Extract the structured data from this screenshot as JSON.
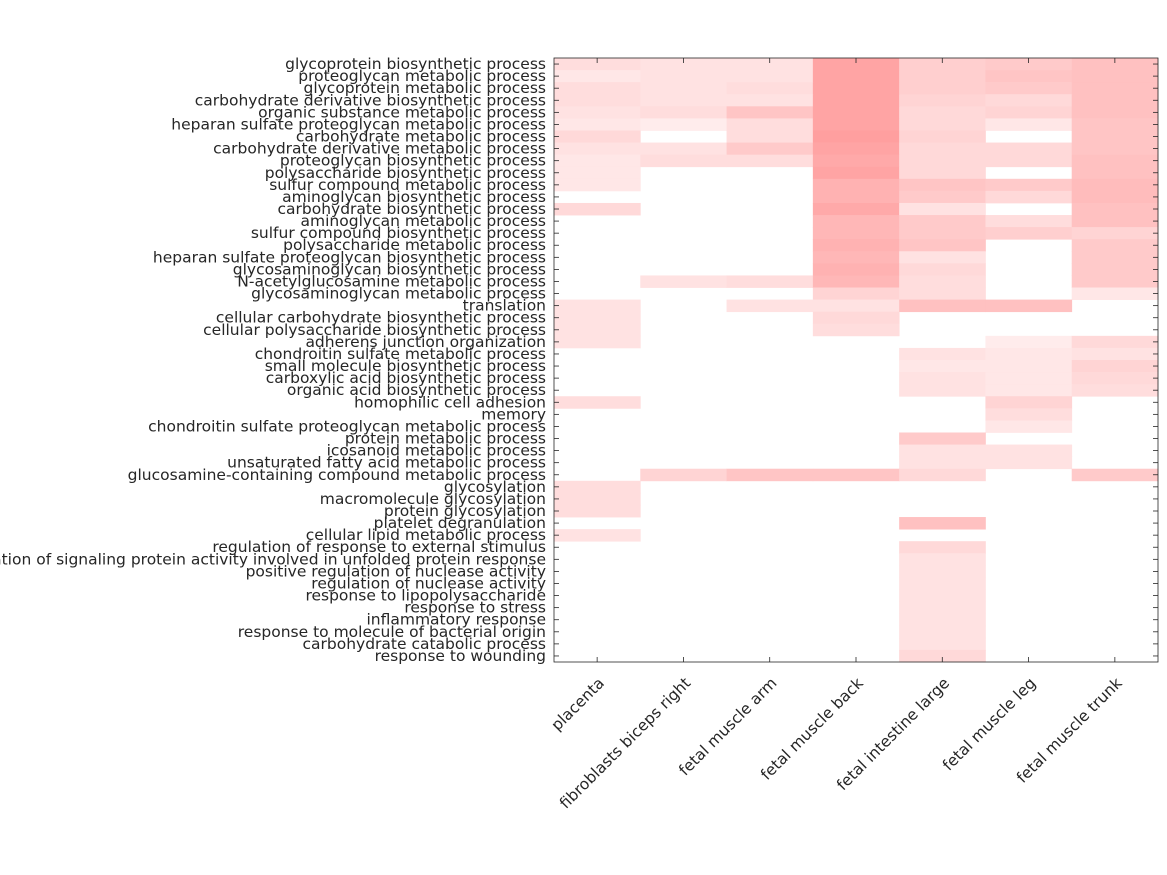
{
  "chart_data": {
    "type": "heatmap",
    "title": "",
    "xlabel": "",
    "ylabel": "",
    "colors": {
      "high": "#ff9f9f",
      "low": "#ffffff",
      "axis": "#262626"
    },
    "columns": [
      "placenta",
      "fibroblasts biceps right",
      "fetal muscle arm",
      "fetal muscle back",
      "fetal intestine large",
      "fetal muscle leg",
      "fetal muscle trunk"
    ],
    "rows": [
      "glycoprotein biosynthetic process",
      "proteoglycan metabolic process",
      "glycoprotein metabolic process",
      "carbohydrate derivative biosynthetic process",
      "organic substance metabolic process",
      "heparan sulfate proteoglycan metabolic process",
      "carbohydrate metabolic process",
      "carbohydrate derivative metabolic process",
      "proteoglycan biosynthetic process",
      "polysaccharide biosynthetic process",
      "sulfur compound metabolic process",
      "aminoglycan biosynthetic process",
      "carbohydrate biosynthetic process",
      "aminoglycan metabolic process",
      "sulfur compound biosynthetic process",
      "polysaccharide metabolic process",
      "heparan sulfate proteoglycan biosynthetic process",
      "glycosaminoglycan biosynthetic process",
      "N-acetylglucosamine metabolic process",
      "glycosaminoglycan metabolic process",
      "translation",
      "cellular carbohydrate biosynthetic process",
      "cellular polysaccharide biosynthetic process",
      "adherens junction organization",
      "chondroitin sulfate metabolic process",
      "small molecule biosynthetic process",
      "carboxylic acid biosynthetic process",
      "organic acid biosynthetic process",
      "homophilic cell adhesion",
      "memory",
      "chondroitin sulfate proteoglycan metabolic process",
      "protein metabolic process",
      "icosanoid metabolic process",
      "unsaturated fatty acid metabolic process",
      "glucosamine-containing compound metabolic process",
      "glycosylation",
      "macromolecule glycosylation",
      "protein glycosylation",
      "platelet degranulation",
      "cellular lipid metabolic process",
      "regulation of response to external stimulus",
      "regulation of signaling protein activity involved in unfolded protein response",
      "positive regulation of nuclease activity",
      "regulation of nuclease activity",
      "response to lipopolysaccharide",
      "response to stress",
      "inflammatory response",
      "response to molecule of bacterial origin",
      "carbohydrate catabolic process",
      "response to wounding"
    ],
    "values": [
      [
        0.35,
        0.3,
        0.3,
        0.95,
        0.5,
        0.55,
        0.65
      ],
      [
        0.25,
        0.3,
        0.3,
        0.95,
        0.5,
        0.6,
        0.65
      ],
      [
        0.35,
        0.3,
        0.35,
        0.95,
        0.5,
        0.55,
        0.65
      ],
      [
        0.35,
        0.3,
        0.3,
        0.95,
        0.45,
        0.4,
        0.65
      ],
      [
        0.3,
        0.35,
        0.6,
        0.95,
        0.4,
        0.45,
        0.65
      ],
      [
        0.25,
        0.2,
        0.35,
        0.95,
        0.4,
        0.25,
        0.6
      ],
      [
        0.4,
        0.0,
        0.35,
        1.0,
        0.45,
        0.0,
        0.6
      ],
      [
        0.3,
        0.3,
        0.55,
        0.95,
        0.4,
        0.4,
        0.6
      ],
      [
        0.25,
        0.35,
        0.35,
        0.9,
        0.4,
        0.4,
        0.65
      ],
      [
        0.25,
        0.0,
        0.0,
        0.95,
        0.4,
        0.0,
        0.65
      ],
      [
        0.25,
        0.0,
        0.0,
        0.8,
        0.6,
        0.55,
        0.7
      ],
      [
        0.0,
        0.0,
        0.0,
        0.8,
        0.55,
        0.4,
        0.7
      ],
      [
        0.4,
        0.0,
        0.0,
        0.9,
        0.3,
        0.0,
        0.65
      ],
      [
        0.0,
        0.0,
        0.0,
        0.75,
        0.55,
        0.35,
        0.65
      ],
      [
        0.0,
        0.0,
        0.0,
        0.75,
        0.55,
        0.5,
        0.45
      ],
      [
        0.0,
        0.0,
        0.0,
        0.8,
        0.6,
        0.0,
        0.55
      ],
      [
        0.0,
        0.0,
        0.0,
        0.75,
        0.3,
        0.0,
        0.55
      ],
      [
        0.0,
        0.0,
        0.0,
        0.8,
        0.4,
        0.0,
        0.55
      ],
      [
        0.0,
        0.3,
        0.35,
        0.75,
        0.35,
        0.0,
        0.55
      ],
      [
        0.0,
        0.0,
        0.0,
        0.45,
        0.35,
        0.0,
        0.25
      ],
      [
        0.3,
        0.0,
        0.3,
        0.3,
        0.65,
        0.65,
        0.0
      ],
      [
        0.3,
        0.0,
        0.0,
        0.4,
        0.0,
        0.0,
        0.0
      ],
      [
        0.3,
        0.0,
        0.0,
        0.35,
        0.0,
        0.0,
        0.0
      ],
      [
        0.3,
        0.0,
        0.0,
        0.0,
        0.0,
        0.2,
        0.4
      ],
      [
        0.0,
        0.0,
        0.0,
        0.0,
        0.3,
        0.25,
        0.3
      ],
      [
        0.0,
        0.0,
        0.0,
        0.0,
        0.25,
        0.25,
        0.45
      ],
      [
        0.0,
        0.0,
        0.0,
        0.0,
        0.3,
        0.25,
        0.4
      ],
      [
        0.0,
        0.0,
        0.0,
        0.0,
        0.3,
        0.25,
        0.35
      ],
      [
        0.35,
        0.0,
        0.0,
        0.0,
        0.0,
        0.45,
        0.0
      ],
      [
        0.0,
        0.0,
        0.0,
        0.0,
        0.0,
        0.35,
        0.0
      ],
      [
        0.0,
        0.0,
        0.0,
        0.0,
        0.0,
        0.25,
        0.0
      ],
      [
        0.0,
        0.0,
        0.0,
        0.0,
        0.55,
        0.0,
        0.0
      ],
      [
        0.0,
        0.0,
        0.0,
        0.0,
        0.3,
        0.3,
        0.0
      ],
      [
        0.0,
        0.0,
        0.0,
        0.0,
        0.3,
        0.3,
        0.0
      ],
      [
        0.0,
        0.45,
        0.6,
        0.6,
        0.4,
        0.0,
        0.55
      ],
      [
        0.35,
        0.0,
        0.0,
        0.0,
        0.0,
        0.0,
        0.0
      ],
      [
        0.35,
        0.0,
        0.0,
        0.0,
        0.0,
        0.0,
        0.0
      ],
      [
        0.35,
        0.0,
        0.0,
        0.0,
        0.0,
        0.0,
        0.0
      ],
      [
        0.0,
        0.0,
        0.0,
        0.0,
        0.65,
        0.0,
        0.0
      ],
      [
        0.3,
        0.0,
        0.0,
        0.0,
        0.0,
        0.0,
        0.0
      ],
      [
        0.0,
        0.0,
        0.0,
        0.0,
        0.4,
        0.0,
        0.0
      ],
      [
        0.0,
        0.0,
        0.0,
        0.0,
        0.3,
        0.0,
        0.0
      ],
      [
        0.0,
        0.0,
        0.0,
        0.0,
        0.3,
        0.0,
        0.0
      ],
      [
        0.0,
        0.0,
        0.0,
        0.0,
        0.3,
        0.0,
        0.0
      ],
      [
        0.0,
        0.0,
        0.0,
        0.0,
        0.3,
        0.0,
        0.0
      ],
      [
        0.0,
        0.0,
        0.0,
        0.0,
        0.3,
        0.0,
        0.0
      ],
      [
        0.0,
        0.0,
        0.0,
        0.0,
        0.3,
        0.0,
        0.0
      ],
      [
        0.0,
        0.0,
        0.0,
        0.0,
        0.3,
        0.0,
        0.0
      ],
      [
        0.0,
        0.0,
        0.0,
        0.0,
        0.3,
        0.0,
        0.0
      ],
      [
        0.0,
        0.0,
        0.0,
        0.0,
        0.4,
        0.0,
        0.0
      ]
    ]
  }
}
